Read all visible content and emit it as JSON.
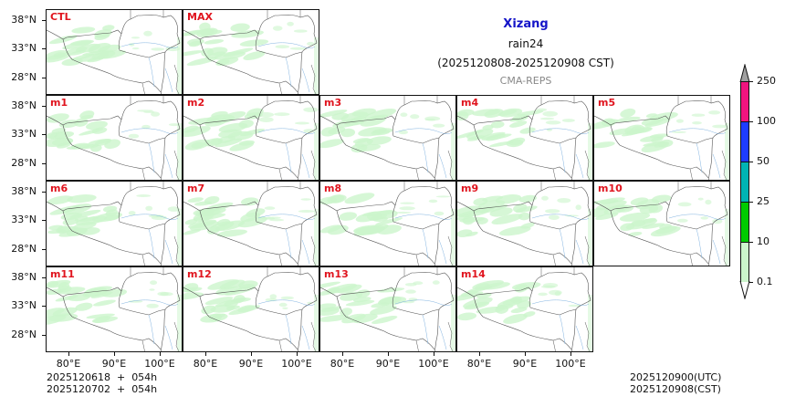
{
  "header": {
    "region": "Xizang",
    "variable": "rain24",
    "period": "(2025120808-2025120908 CST)",
    "model": "CMA-REPS"
  },
  "footer": {
    "init_line1": "2025120618  +  054h",
    "init_line2": "2025120702  +  054h",
    "valid_utc": "2025120900(UTC)",
    "valid_cst": "2025120908(CST)"
  },
  "axes": {
    "y_ticks": [
      "38°N",
      "33°N",
      "28°N"
    ],
    "x_ticks": [
      "80°E",
      "90°E",
      "100°E"
    ]
  },
  "panels": [
    {
      "label": "CTL",
      "row": 0,
      "col": 0
    },
    {
      "label": "MAX",
      "row": 0,
      "col": 1
    },
    {
      "label": "m1",
      "row": 1,
      "col": 0
    },
    {
      "label": "m2",
      "row": 1,
      "col": 1
    },
    {
      "label": "m3",
      "row": 1,
      "col": 2
    },
    {
      "label": "m4",
      "row": 1,
      "col": 3
    },
    {
      "label": "m5",
      "row": 1,
      "col": 4
    },
    {
      "label": "m6",
      "row": 2,
      "col": 0
    },
    {
      "label": "m7",
      "row": 2,
      "col": 1
    },
    {
      "label": "m8",
      "row": 2,
      "col": 2
    },
    {
      "label": "m9",
      "row": 2,
      "col": 3
    },
    {
      "label": "m10",
      "row": 2,
      "col": 4
    },
    {
      "label": "m11",
      "row": 3,
      "col": 0
    },
    {
      "label": "m12",
      "row": 3,
      "col": 1
    },
    {
      "label": "m13",
      "row": 3,
      "col": 2
    },
    {
      "label": "m14",
      "row": 3,
      "col": 3
    }
  ],
  "colorbar": {
    "levels": [
      "0.1",
      "10",
      "25",
      "50",
      "100",
      "250"
    ],
    "colors": [
      "#ccf5cc",
      "#00cc00",
      "#00b4b4",
      "#1e3cff",
      "#f0147f"
    ],
    "under_color": "#ffffff",
    "over_color": "#a0a0a0"
  },
  "chart_data": {
    "type": "heatmap",
    "title": "Xizang rain24 (2025120808-2025120908 CST)",
    "subtitle": "CMA-REPS",
    "description": "Ensemble panel maps of 24h accumulated precipitation over Xizang (Tibet) region; all members show light rain (0.1-10 mm) mainly across the northern/western plateau.",
    "panels": [
      "CTL",
      "MAX",
      "m1",
      "m2",
      "m3",
      "m4",
      "m5",
      "m6",
      "m7",
      "m8",
      "m9",
      "m10",
      "m11",
      "m12",
      "m13",
      "m14"
    ],
    "xlabel": "",
    "ylabel": "",
    "x_ticks": [
      "80°E",
      "90°E",
      "100°E"
    ],
    "y_ticks": [
      "38°N",
      "33°N",
      "28°N"
    ],
    "xlim": [
      75,
      105
    ],
    "ylim": [
      25,
      40
    ],
    "colorbar_levels": [
      0.1,
      10,
      25,
      50,
      100,
      250
    ],
    "colorbar_colors": [
      "#ccf5cc",
      "#00cc00",
      "#00b4b4",
      "#1e3cff",
      "#f0147f"
    ],
    "dominant_category": "0.1-10"
  }
}
